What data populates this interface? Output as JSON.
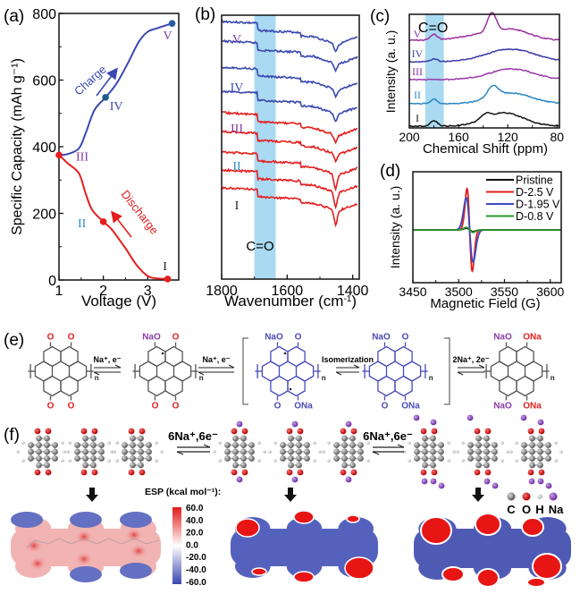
{
  "panels": {
    "a": {
      "label": "(a)"
    },
    "b": {
      "label": "(b)"
    },
    "c": {
      "label": "(c)"
    },
    "d": {
      "label": "(d)"
    },
    "e": {
      "label": "(e)"
    },
    "f": {
      "label": "(f)"
    }
  },
  "chart_data": [
    {
      "id": "a",
      "type": "line",
      "title": "",
      "xlabel": "Voltage (V)",
      "ylabel": "Specific Capacity (mAh g⁻¹)",
      "xlim": [
        1,
        3.7
      ],
      "ylim": [
        0,
        800
      ],
      "xticks": [
        1,
        2,
        3
      ],
      "yticks": [
        0,
        200,
        400,
        600,
        800
      ],
      "series": [
        {
          "name": "Discharge",
          "color": "#e41e1e",
          "x": [
            1.0,
            1.2,
            1.45,
            1.6,
            1.75,
            2.0,
            2.2,
            2.5,
            2.75,
            3.0,
            3.2,
            3.45
          ],
          "y": [
            375,
            350,
            320,
            260,
            210,
            175,
            150,
            95,
            45,
            12,
            5,
            3
          ]
        },
        {
          "name": "Charge",
          "color": "#3a48b0",
          "x": [
            1.0,
            1.2,
            1.45,
            1.6,
            1.8,
            2.05,
            2.3,
            2.55,
            2.8,
            3.0,
            3.2,
            3.55
          ],
          "y": [
            375,
            378,
            395,
            440,
            510,
            548,
            590,
            650,
            715,
            745,
            755,
            770
          ]
        }
      ],
      "markers": [
        {
          "label": "I",
          "x": 3.45,
          "y": 3,
          "color": "#e41e1e",
          "label_color": "#222222"
        },
        {
          "label": "II",
          "x": 2.0,
          "y": 175,
          "color": "#e41e1e",
          "label_color": "#2f8fd0"
        },
        {
          "label": "III",
          "x": 1.0,
          "y": 375,
          "color": "#e41e1e",
          "label_color": "#8a3aa8"
        },
        {
          "label": "IV",
          "x": 2.05,
          "y": 548,
          "color": "#1f5b8a",
          "label_color": "#3a48b0"
        },
        {
          "label": "V",
          "x": 3.55,
          "y": 770,
          "color": "#2a5aa8",
          "label_color": "#8a3aa8"
        }
      ],
      "annotations": [
        {
          "text": "Charge",
          "color": "#3a48b0"
        },
        {
          "text": "Discharge",
          "color": "#e41e1e"
        }
      ]
    },
    {
      "id": "b",
      "type": "line",
      "title": "",
      "xlabel": "Wavenumber (cm⁻¹)",
      "ylabel": "",
      "xlim": [
        1800,
        1380
      ],
      "xticks": [
        1800,
        1600,
        1400
      ],
      "highlight_band": {
        "from": 1700,
        "to": 1635,
        "label": "C=O",
        "color": "#a9daf2"
      },
      "series_labels": [
        {
          "label": "V",
          "color": "#8a3aa8"
        },
        {
          "label": "IV",
          "color": "#3a48b0"
        },
        {
          "label": "III",
          "color": "#8a3aa8"
        },
        {
          "label": "II",
          "color": "#2f8fd0"
        },
        {
          "label": "I",
          "color": "#222222"
        }
      ],
      "traces": [
        {
          "color": "#3a48b0",
          "offset": 9
        },
        {
          "color": "#3a48b0",
          "offset": 8
        },
        {
          "color": "#3a48b0",
          "offset": 7
        },
        {
          "color": "#3a48b0",
          "offset": 6
        },
        {
          "color": "#e41e1e",
          "offset": 5
        },
        {
          "color": "#e41e1e",
          "offset": 4
        },
        {
          "color": "#e41e1e",
          "offset": 3
        },
        {
          "color": "#e41e1e",
          "offset": 2
        },
        {
          "color": "#e41e1e",
          "offset": 1
        }
      ]
    },
    {
      "id": "c",
      "type": "line",
      "title": "",
      "xlabel": "Chemical Shift (ppm)",
      "ylabel": "Intensity (a. u.)",
      "xlim": [
        200,
        78
      ],
      "xticks": [
        200,
        160,
        120,
        80
      ],
      "highlight_band": {
        "from": 187,
        "to": 172,
        "label": "C=O",
        "color": "#a9daf2"
      },
      "series": [
        {
          "name": "V",
          "color": "#9b2f9b",
          "label_color": "#8a3aa8"
        },
        {
          "name": "IV",
          "color": "#3a3aa8",
          "label_color": "#3a48b0"
        },
        {
          "name": "III",
          "color": "#9b3aa8",
          "label_color": "#8a3aa8"
        },
        {
          "name": "II",
          "color": "#2a86c6",
          "label_color": "#2f8fd0"
        },
        {
          "name": "I",
          "color": "#111111",
          "label_color": "#222222"
        }
      ]
    },
    {
      "id": "d",
      "type": "line",
      "title": "",
      "xlabel": "Magnetic Field (G)",
      "ylabel": "Intensity (a. u.)",
      "xlim": [
        3450,
        3612
      ],
      "xticks": [
        3450,
        3500,
        3550,
        3600
      ],
      "legend_position": "top-right",
      "series": [
        {
          "name": "Pristine",
          "color": "#111111",
          "amplitude": 0.04
        },
        {
          "name": "D-2.5 V",
          "color": "#e41e1e",
          "amplitude": 1.0
        },
        {
          "name": "D-1.95 V",
          "color": "#3a48c0",
          "amplitude": 0.78
        },
        {
          "name": "D-0.8 V",
          "color": "#2a9a2a",
          "amplitude": 0.06
        }
      ]
    }
  ],
  "scheme_e": {
    "arrows": [
      {
        "label": "Na⁺, e⁻"
      },
      {
        "label": "Na⁺, e⁻"
      },
      {
        "label": "Isomerization"
      },
      {
        "label": "2Na⁺, 2e⁻"
      }
    ],
    "subscript": "n",
    "atoms": {
      "O": "O",
      "NaO": "NaO",
      "ONa": "ONa"
    },
    "colors": {
      "oxygen": "#e41e1e",
      "sodium": "#8a3aa8",
      "intermediate": "#4a4ab8",
      "bond": "#555555"
    }
  },
  "panel_f": {
    "arrows": [
      {
        "label": "6Na⁺,6e⁻"
      },
      {
        "label": "6Na⁺,6e⁻"
      }
    ],
    "esp_title": "ESP (kcal mol⁻¹):",
    "esp_ticks": [
      "60.0",
      "40.0",
      "20.0",
      "0.0",
      "-20.0",
      "-40.0",
      "-60.0"
    ],
    "atom_legend": [
      {
        "symbol": "C",
        "color": "#777777"
      },
      {
        "symbol": "O",
        "color": "#e00000"
      },
      {
        "symbol": "H",
        "color": "#cccccc"
      },
      {
        "symbol": "Na",
        "color": "#8a4ab8"
      }
    ],
    "esp_colors": {
      "positive": "#e01818",
      "neutral": "#ffffff",
      "negative": "#3a46b0"
    }
  }
}
